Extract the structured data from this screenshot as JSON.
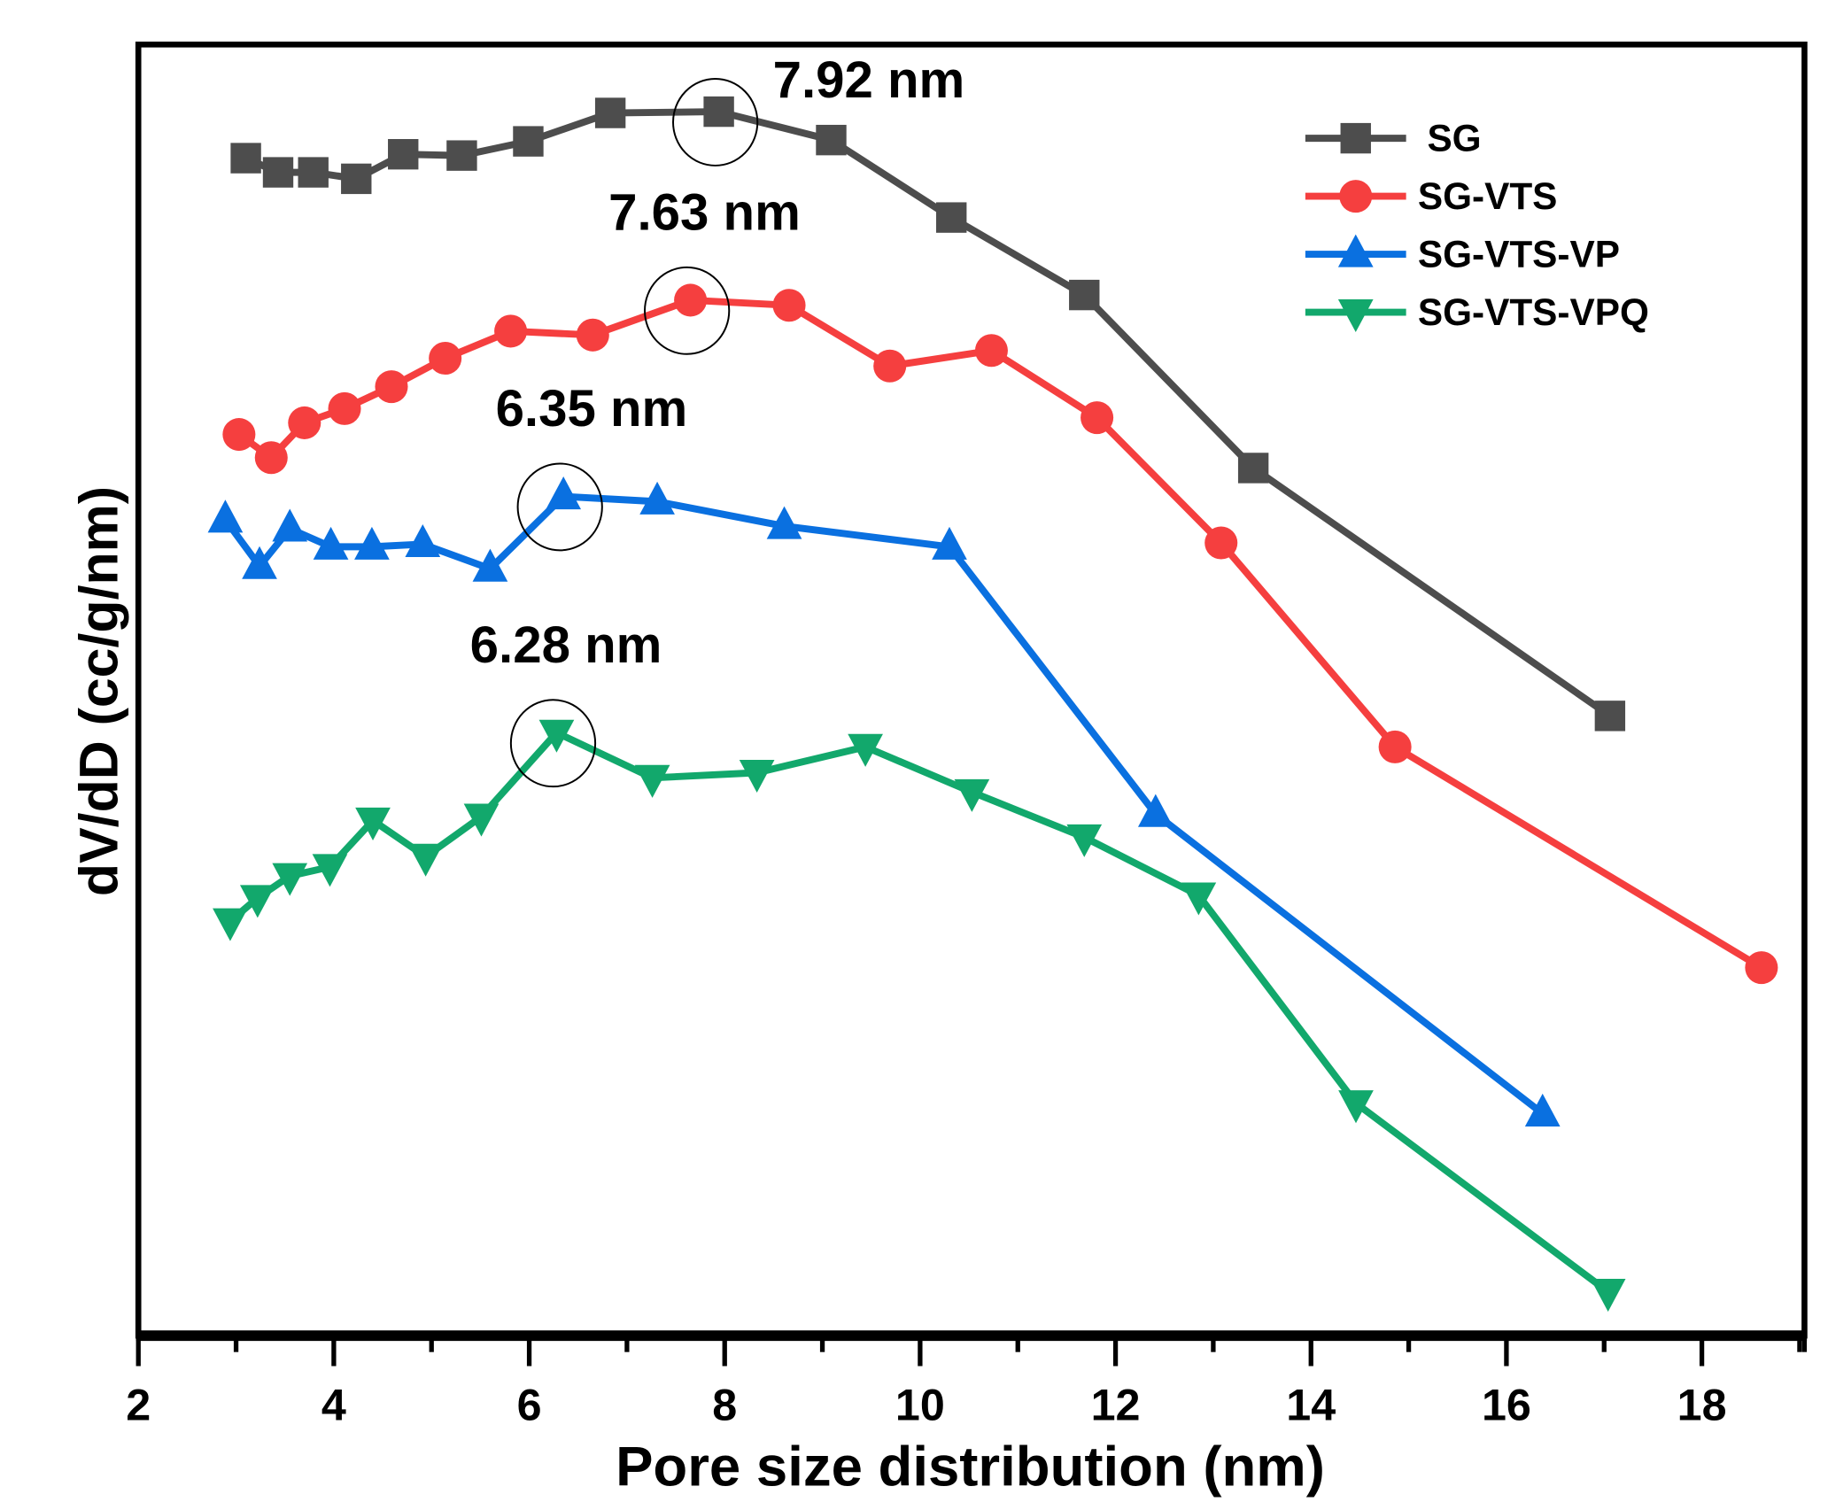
{
  "chart_data": {
    "type": "line",
    "title": "",
    "xlabel": "Pore size distribution (nm)",
    "ylabel": "dV/dD (cc/g/nm)",
    "xlim": [
      2,
      19.05
    ],
    "ylim": [
      0,
      100
    ],
    "y_units_note": "arbitrary (no y ticks shown)",
    "xticks": [
      2,
      4,
      6,
      8,
      10,
      12,
      14,
      16,
      18
    ],
    "grid": false,
    "legend_position": "top-right",
    "series": [
      {
        "name": "SG",
        "color": "#4d4d4d",
        "marker": "square",
        "x": [
          3.1,
          3.43,
          3.79,
          4.23,
          4.71,
          5.31,
          5.99,
          6.83,
          7.94,
          9.09,
          10.32,
          11.68,
          13.41,
          17.06
        ],
        "y": [
          91.2,
          90.1,
          90.1,
          89.6,
          91.5,
          91.4,
          92.5,
          94.7,
          94.8,
          92.6,
          86.6,
          80.6,
          67.2,
          48.0
        ]
      },
      {
        "name": "SG-VTS",
        "color": "#f53f3f",
        "marker": "circle",
        "x": [
          3.03,
          3.36,
          3.7,
          4.11,
          4.59,
          5.14,
          5.81,
          6.65,
          7.65,
          8.66,
          9.69,
          10.73,
          11.81,
          13.08,
          14.86,
          18.61
        ],
        "y": [
          69.8,
          68.0,
          70.7,
          71.8,
          73.5,
          75.7,
          77.8,
          77.5,
          80.2,
          79.8,
          75.1,
          76.3,
          71.1,
          61.4,
          45.6,
          28.5
        ]
      },
      {
        "name": "SG-VTS-VP",
        "color": "#0a70e0",
        "marker": "triangle-up",
        "x": [
          2.89,
          3.24,
          3.55,
          3.97,
          4.39,
          4.91,
          5.6,
          6.35,
          7.31,
          8.61,
          10.3,
          12.41,
          16.37
        ],
        "y": [
          63.2,
          59.6,
          62.5,
          61.1,
          61.1,
          61.3,
          59.4,
          65.0,
          64.6,
          62.7,
          61.1,
          40.4,
          17.2
        ]
      },
      {
        "name": "SG-VTS-VPQ",
        "color": "#12a86c",
        "marker": "triangle-down",
        "x": [
          2.94,
          3.22,
          3.55,
          3.96,
          4.4,
          4.94,
          5.51,
          6.28,
          7.26,
          8.33,
          9.44,
          10.53,
          11.68,
          12.85,
          14.46,
          17.04
        ],
        "y": [
          32.1,
          33.9,
          35.6,
          36.3,
          39.9,
          37.1,
          40.2,
          46.7,
          43.2,
          43.6,
          45.6,
          42.1,
          38.6,
          34.1,
          18.0,
          3.4
        ]
      }
    ],
    "annotations": [
      {
        "text": "7.92 nm",
        "series": "SG",
        "x": 7.94,
        "y": 94.8
      },
      {
        "text": "7.63 nm",
        "series": "SG-VTS",
        "x": 7.65,
        "y": 80.2
      },
      {
        "text": "6.35 nm",
        "series": "SG-VTS-VP",
        "x": 6.35,
        "y": 65.0
      },
      {
        "text": "6.28 nm",
        "series": "SG-VTS-VPQ",
        "x": 6.28,
        "y": 46.7
      }
    ]
  }
}
